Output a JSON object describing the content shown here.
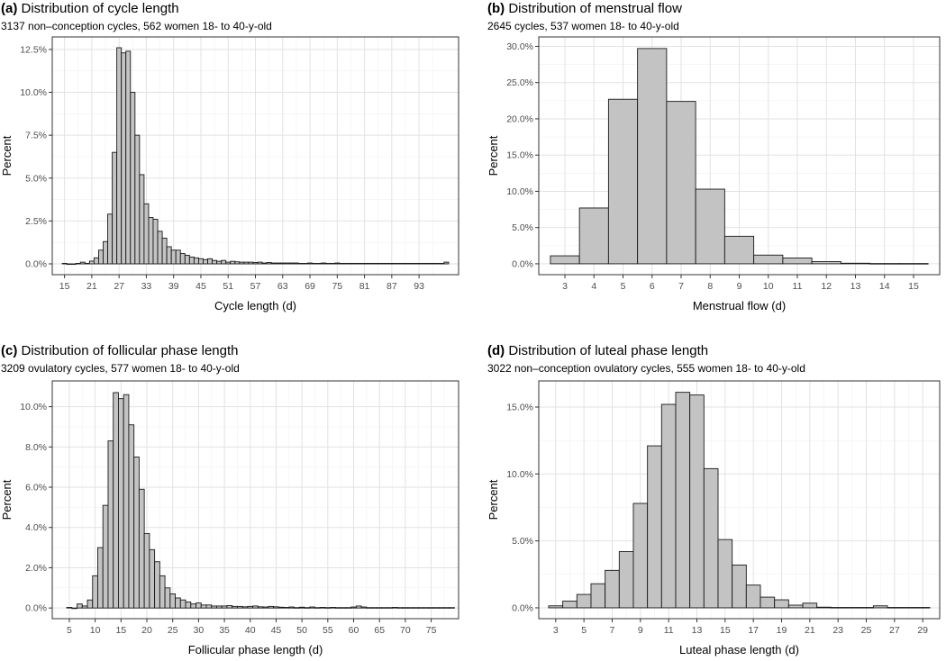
{
  "colors": {
    "bar_fill": "#c3c3c3",
    "bar_stroke": "#1a1a1a",
    "grid_major": "#e2e2e2",
    "grid_minor": "#f1f1f1",
    "frame": "#333333",
    "tick_text": "#4d4d4d",
    "title_text": "#000000"
  },
  "chart_data": [
    {
      "id": "a",
      "type": "bar",
      "title_tag": "(a)",
      "title": "Distribution of cycle length",
      "subtitle": "3137 non–conception cycles, 562 women 18- to 40-y-old",
      "xlabel": "Cycle length (d)",
      "ylabel": "Percent",
      "xlim": [
        12.3,
        101.7
      ],
      "ylim": [
        -0.63,
        13.23
      ],
      "x_ticks": [
        15,
        21,
        27,
        33,
        39,
        45,
        51,
        57,
        63,
        69,
        75,
        81,
        87,
        93
      ],
      "x_tick_labels": [
        "15",
        "21",
        "27",
        "33",
        "39",
        "45",
        "51",
        "57",
        "63",
        "69",
        "75",
        "81",
        "87",
        "93"
      ],
      "x_minor_ticks": [
        18,
        24,
        30,
        36,
        42,
        48,
        54,
        60,
        66,
        72,
        78,
        84,
        90,
        96
      ],
      "y_ticks": [
        0,
        2.5,
        5,
        7.5,
        10,
        12.5
      ],
      "y_tick_labels": [
        "0.0%",
        "2.5%",
        "5.0%",
        "7.5%",
        "10.0%",
        "12.5%"
      ],
      "y_minor_ticks": [
        1.25,
        3.75,
        6.25,
        8.75,
        11.25
      ],
      "bin_width": 1,
      "bin_centers": [
        15,
        16,
        17,
        18,
        19,
        20,
        21,
        22,
        23,
        24,
        25,
        26,
        27,
        28,
        29,
        30,
        31,
        32,
        33,
        34,
        35,
        36,
        37,
        38,
        39,
        40,
        41,
        42,
        43,
        44,
        45,
        46,
        47,
        48,
        49,
        50,
        51,
        52,
        53,
        54,
        55,
        56,
        57,
        58,
        59,
        60,
        61,
        62,
        63,
        64,
        65,
        66,
        67,
        68,
        69,
        70,
        71,
        72,
        73,
        74,
        75,
        76,
        77,
        78,
        79,
        80,
        81,
        82,
        83,
        84,
        85,
        86,
        87,
        88,
        89,
        90,
        91,
        92,
        93,
        94,
        95,
        96,
        97,
        98,
        99
      ],
      "values": [
        0.03,
        0,
        0,
        0.03,
        0.1,
        0.03,
        0.16,
        0.35,
        0.8,
        1.3,
        2.9,
        6.5,
        12.6,
        12.3,
        12.4,
        10.0,
        7.5,
        5.2,
        3.5,
        2.7,
        2.6,
        1.9,
        1.5,
        1.0,
        0.8,
        0.8,
        0.6,
        0.5,
        0.4,
        0.35,
        0.3,
        0.25,
        0.3,
        0.2,
        0.15,
        0.2,
        0.1,
        0.15,
        0.12,
        0.1,
        0.1,
        0.1,
        0.08,
        0.1,
        0.05,
        0.08,
        0.05,
        0.05,
        0.05,
        0.05,
        0.05,
        0.05,
        0.03,
        0.03,
        0.05,
        0.03,
        0.03,
        0.05,
        0.03,
        0.03,
        0.05,
        0.03,
        0.03,
        0.03,
        0.03,
        0.03,
        0.03,
        0.03,
        0.03,
        0.03,
        0.03,
        0.03,
        0.03,
        0.03,
        0.03,
        0.03,
        0.03,
        0.03,
        0.03,
        0.03,
        0.03,
        0.03,
        0.03,
        0.03,
        0.1
      ]
    },
    {
      "id": "b",
      "type": "bar",
      "title_tag": "(b)",
      "title": "Distribution of menstrual flow",
      "subtitle": "2645 cycles, 537 women 18- to 40-y-old",
      "xlabel": "Menstrual flow (d)",
      "ylabel": "Percent",
      "xlim": [
        2.1,
        15.9
      ],
      "ylim": [
        -1.5,
        31.3
      ],
      "x_ticks": [
        3,
        4,
        5,
        6,
        7,
        8,
        9,
        10,
        11,
        12,
        13,
        14,
        15
      ],
      "x_tick_labels": [
        "3",
        "4",
        "5",
        "6",
        "7",
        "8",
        "9",
        "10",
        "11",
        "12",
        "13",
        "14",
        "15"
      ],
      "x_minor_ticks": [],
      "y_ticks": [
        0,
        5,
        10,
        15,
        20,
        25,
        30
      ],
      "y_tick_labels": [
        "0.0%",
        "5.0%",
        "10.0%",
        "15.0%",
        "20.0%",
        "25.0%",
        "30.0%"
      ],
      "y_minor_ticks": [
        2.5,
        7.5,
        12.5,
        17.5,
        22.5,
        27.5
      ],
      "bin_width": 1,
      "bin_centers": [
        3,
        4,
        5,
        6,
        7,
        8,
        9,
        10,
        11,
        12,
        13,
        14,
        15
      ],
      "values": [
        1.1,
        7.7,
        22.7,
        29.7,
        22.4,
        10.3,
        3.8,
        1.2,
        0.8,
        0.3,
        0.08,
        0.04,
        0.04
      ]
    },
    {
      "id": "c",
      "type": "bar",
      "title_tag": "(c)",
      "title": "Distribution of follicular phase length",
      "subtitle": "3209 ovulatory cycles, 577 women 18- to 40-y-old",
      "xlabel": "Follicular phase length (d)",
      "ylabel": "Percent",
      "xlim": [
        1.7,
        80.3
      ],
      "ylim": [
        -0.53,
        11.28
      ],
      "x_ticks": [
        5,
        10,
        15,
        20,
        25,
        30,
        35,
        40,
        45,
        50,
        55,
        60,
        65,
        70,
        75
      ],
      "x_tick_labels": [
        "5",
        "10",
        "15",
        "20",
        "25",
        "30",
        "35",
        "40",
        "45",
        "50",
        "55",
        "60",
        "65",
        "70",
        "75"
      ],
      "x_minor_ticks": [
        7.5,
        12.5,
        17.5,
        22.5,
        27.5,
        32.5,
        37.5,
        42.5,
        47.5,
        52.5,
        57.5,
        62.5,
        67.5,
        72.5,
        77.5
      ],
      "y_ticks": [
        0,
        2,
        4,
        6,
        8,
        10
      ],
      "y_tick_labels": [
        "0.0%",
        "2.0%",
        "4.0%",
        "6.0%",
        "8.0%",
        "10.0%"
      ],
      "y_minor_ticks": [
        1,
        3,
        5,
        7,
        9
      ],
      "bin_width": 1,
      "bin_centers": [
        5,
        6,
        7,
        8,
        9,
        10,
        11,
        12,
        13,
        14,
        15,
        16,
        17,
        18,
        19,
        20,
        21,
        22,
        23,
        24,
        25,
        26,
        27,
        28,
        29,
        30,
        31,
        32,
        33,
        34,
        35,
        36,
        37,
        38,
        39,
        40,
        41,
        42,
        43,
        44,
        45,
        46,
        47,
        48,
        49,
        50,
        51,
        52,
        53,
        54,
        55,
        56,
        57,
        58,
        59,
        60,
        61,
        62,
        63,
        64,
        65,
        66,
        67,
        68,
        69,
        70,
        71,
        72,
        73,
        74,
        75,
        76,
        77,
        78,
        79
      ],
      "values": [
        0.03,
        0,
        0.2,
        0.1,
        0.4,
        1.6,
        3.0,
        5.1,
        8.3,
        10.7,
        10.4,
        10.6,
        9.1,
        7.5,
        5.9,
        3.7,
        2.9,
        2.3,
        1.6,
        1.0,
        0.7,
        0.5,
        0.4,
        0.3,
        0.2,
        0.25,
        0.15,
        0.15,
        0.1,
        0.1,
        0.1,
        0.12,
        0.08,
        0.08,
        0.06,
        0.08,
        0.1,
        0.06,
        0.05,
        0.08,
        0.06,
        0.04,
        0.03,
        0.05,
        0.02,
        0.04,
        0.02,
        0.05,
        0.02,
        0.03,
        0.02,
        0.03,
        0.02,
        0.02,
        0.02,
        0.05,
        0.1,
        0.05,
        0.02,
        0.02,
        0.02,
        0.02,
        0.02,
        0.03,
        0.02,
        0.02,
        0.02,
        0.02,
        0.02,
        0.02,
        0.02,
        0.02,
        0.02,
        0.02,
        0.02
      ]
    },
    {
      "id": "d",
      "type": "bar",
      "title_tag": "(d)",
      "title": "Distribution of luteal phase length",
      "subtitle": "3022 non–conception ovulatory cycles, 555 women 18- to 40-y-old",
      "xlabel": "Luteal phase length (d)",
      "ylabel": "Percent",
      "xlim": [
        1.8,
        30.2
      ],
      "ylim": [
        -0.81,
        16.95
      ],
      "x_ticks": [
        3,
        5,
        7,
        9,
        11,
        13,
        15,
        17,
        19,
        21,
        23,
        25,
        27,
        29
      ],
      "x_tick_labels": [
        "3",
        "5",
        "7",
        "9",
        "11",
        "13",
        "15",
        "17",
        "19",
        "21",
        "23",
        "25",
        "27",
        "29"
      ],
      "x_minor_ticks": [
        4,
        6,
        8,
        10,
        12,
        14,
        16,
        18,
        20,
        22,
        24,
        26,
        28
      ],
      "y_ticks": [
        0,
        5,
        10,
        15
      ],
      "y_tick_labels": [
        "0.0%",
        "5.0%",
        "10.0%",
        "15.0%"
      ],
      "y_minor_ticks": [
        2.5,
        7.5,
        12.5
      ],
      "bin_width": 1,
      "bin_centers": [
        3,
        4,
        5,
        6,
        7,
        8,
        9,
        10,
        11,
        12,
        13,
        14,
        15,
        16,
        17,
        18,
        19,
        20,
        21,
        22,
        23,
        24,
        25,
        26,
        27,
        28,
        29
      ],
      "values": [
        0.15,
        0.5,
        1.0,
        1.8,
        2.8,
        4.2,
        7.8,
        12.1,
        15.2,
        16.1,
        15.9,
        10.4,
        5.1,
        3.2,
        1.7,
        0.8,
        0.6,
        0.2,
        0.35,
        0.05,
        0.03,
        0.03,
        0.03,
        0.15,
        0.03,
        0.03,
        0.03
      ]
    }
  ]
}
